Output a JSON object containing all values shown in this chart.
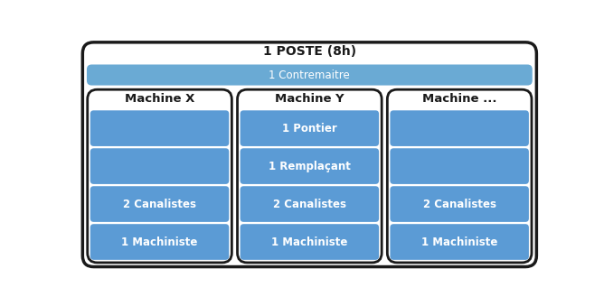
{
  "title": "1 POSTE (8h)",
  "title_fontsize": 10,
  "contrematire_label": "1 Contremaitre",
  "machine_headers": [
    "Machine X",
    "Machine Y",
    "Machine ..."
  ],
  "machine_x_rows": [
    "",
    "",
    "2 Canalistes",
    "1 Machiniste"
  ],
  "machine_y_rows": [
    "1 Pontier",
    "1 Remplaçant",
    "2 Canalistes",
    "1 Machiniste"
  ],
  "machine_z_rows": [
    "",
    "",
    "2 Canalistes",
    "1 Machiniste"
  ],
  "box_blue": "#6aaad4",
  "box_blue_inner": "#5b9bd5",
  "outer_bg": "#6aaad4",
  "col_bg": "#ffffff",
  "border_color": "#1a1a1a",
  "text_white": "#ffffff",
  "text_black": "#1a1a1a",
  "fig_bg": "#ffffff",
  "label_fontsize": 8.5,
  "header_fontsize": 9.5
}
